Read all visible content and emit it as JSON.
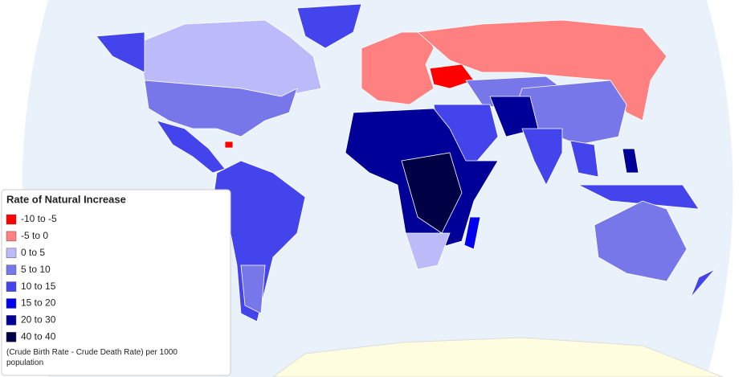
{
  "legend": {
    "title": "Rate of Natural Increase",
    "items": [
      {
        "label": "-10 to -5",
        "color": "#ff0000"
      },
      {
        "label": "-5 to 0",
        "color": "#ff8080"
      },
      {
        "label": "0 to 5",
        "color": "#bbbbfa"
      },
      {
        "label": "5 to 10",
        "color": "#7777ea"
      },
      {
        "label": "10 to 15",
        "color": "#4444ec"
      },
      {
        "label": "15 to 20",
        "color": "#0000ee"
      },
      {
        "label": "20 to 30",
        "color": "#000099"
      },
      {
        "label": "40 to 40",
        "color": "#000044"
      }
    ],
    "note": "(Crude Birth Rate - Crude Death Rate) per 1000 population"
  }
}
